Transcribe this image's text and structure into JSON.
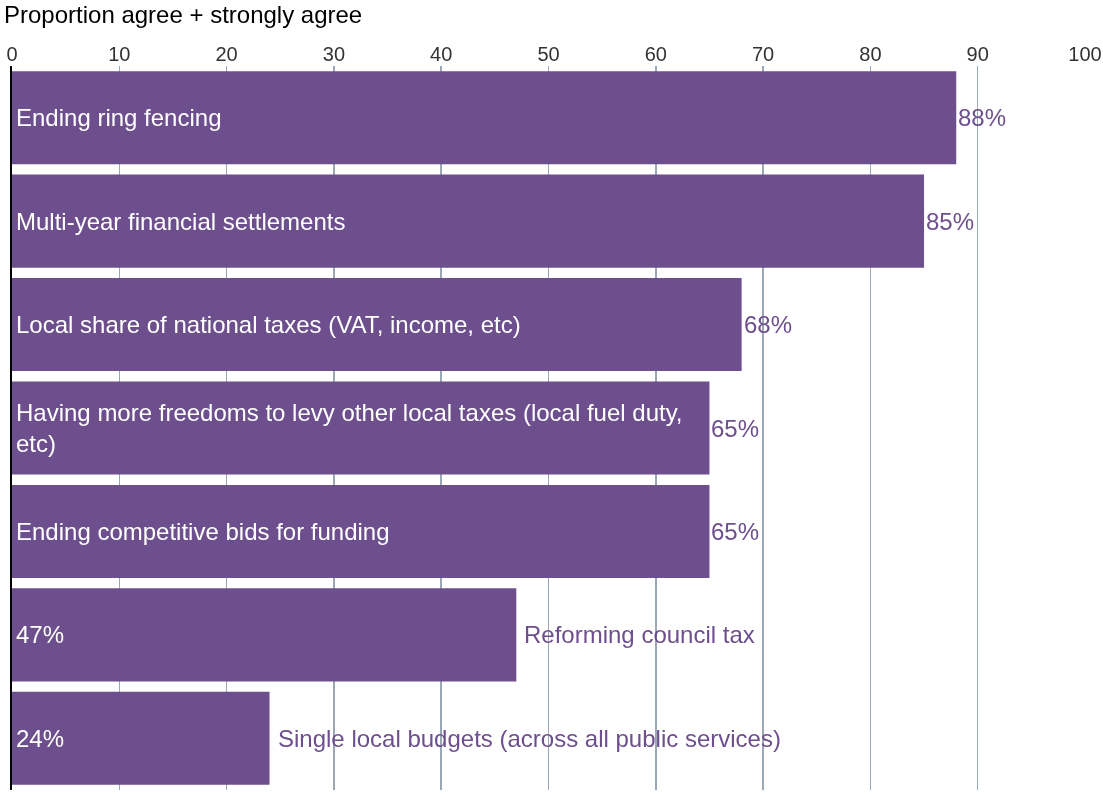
{
  "chart_data": {
    "type": "bar",
    "orientation": "horizontal",
    "xlabel": "Proportion agree + strongly agree",
    "categories": [
      "Ending ring fencing",
      "Multi-year financial settlements",
      "Local share of national taxes (VAT, income, etc)",
      "Having more freedoms to levy other local taxes (local fuel duty, etc)",
      "Ending competitive bids for funding",
      "Reforming council tax",
      "Single local budgets (across all public services)"
    ],
    "values": [
      88,
      85,
      68,
      65,
      65,
      47,
      24
    ],
    "value_labels": [
      "88%",
      "85%",
      "68%",
      "65%",
      "65%",
      "47%",
      "24%"
    ],
    "color": "#6d4f8d",
    "xlim": [
      0,
      100
    ],
    "xticks": [
      0,
      10,
      20,
      30,
      40,
      50,
      60,
      70,
      80,
      90,
      100
    ],
    "grid": "x",
    "tick_labels": "x"
  }
}
